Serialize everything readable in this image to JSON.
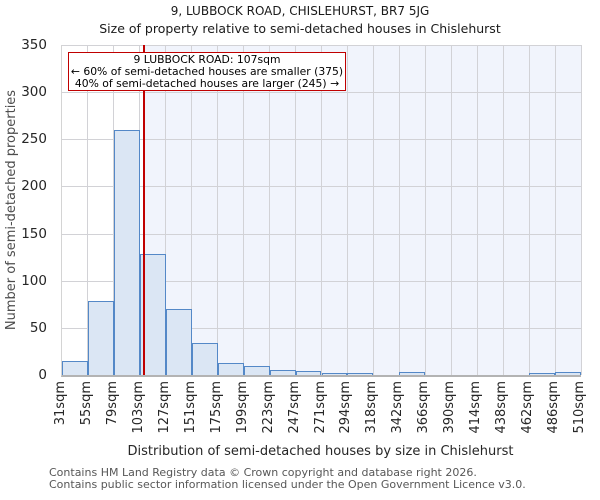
{
  "page": {
    "title": "9, LUBBOCK ROAD, CHISLEHURST, BR7 5JG",
    "subtitle": "Size of property relative to semi-detached houses in Chislehurst"
  },
  "chart_data": {
    "type": "bar",
    "title": "9, LUBBOCK ROAD, CHISLEHURST, BR7 5JG",
    "subtitle": "Size of property relative to semi-detached houses in Chislehurst",
    "xlabel": "Distribution of semi-detached houses by size in Chislehurst",
    "ylabel": "Number of semi-detached properties",
    "ylim": [
      0,
      350
    ],
    "yticks": [
      0,
      50,
      100,
      150,
      200,
      250,
      300,
      350
    ],
    "grid": true,
    "x_tick_labels": [
      "31sqm",
      "55sqm",
      "79sqm",
      "103sqm",
      "127sqm",
      "151sqm",
      "175sqm",
      "199sqm",
      "223sqm",
      "247sqm",
      "271sqm",
      "294sqm",
      "318sqm",
      "342sqm",
      "366sqm",
      "390sqm",
      "414sqm",
      "438sqm",
      "462sqm",
      "486sqm",
      "510sqm"
    ],
    "bin_edges_sqm": [
      31,
      55,
      79,
      103,
      127,
      151,
      175,
      199,
      223,
      247,
      271,
      294,
      318,
      342,
      366,
      390,
      414,
      438,
      462,
      486,
      510
    ],
    "values": [
      15,
      78,
      260,
      128,
      70,
      34,
      13,
      10,
      5,
      4,
      2,
      2,
      0,
      3,
      0,
      0,
      0,
      0,
      2,
      3
    ],
    "marker": {
      "value_sqm": 107,
      "axis_min_sqm": 31,
      "axis_max_sqm": 510
    },
    "annotation": {
      "line1": "9 LUBBOCK ROAD: 107sqm",
      "line2": "← 60% of semi-detached houses are smaller (375)",
      "line3": "40% of semi-detached houses are larger (245) →"
    },
    "colors": {
      "bar_fill": "#dbe6f4",
      "bar_edge": "#5488c7",
      "marker_red": "#c00000",
      "shade_right_of_marker": "#f1f4fc",
      "gridline": "#d2d2d6",
      "axis_line": "#b3b3b3"
    }
  },
  "footer": {
    "line1": "Contains HM Land Registry data © Crown copyright and database right 2026.",
    "line2": "Contains public sector information licensed under the Open Government Licence v3.0."
  }
}
